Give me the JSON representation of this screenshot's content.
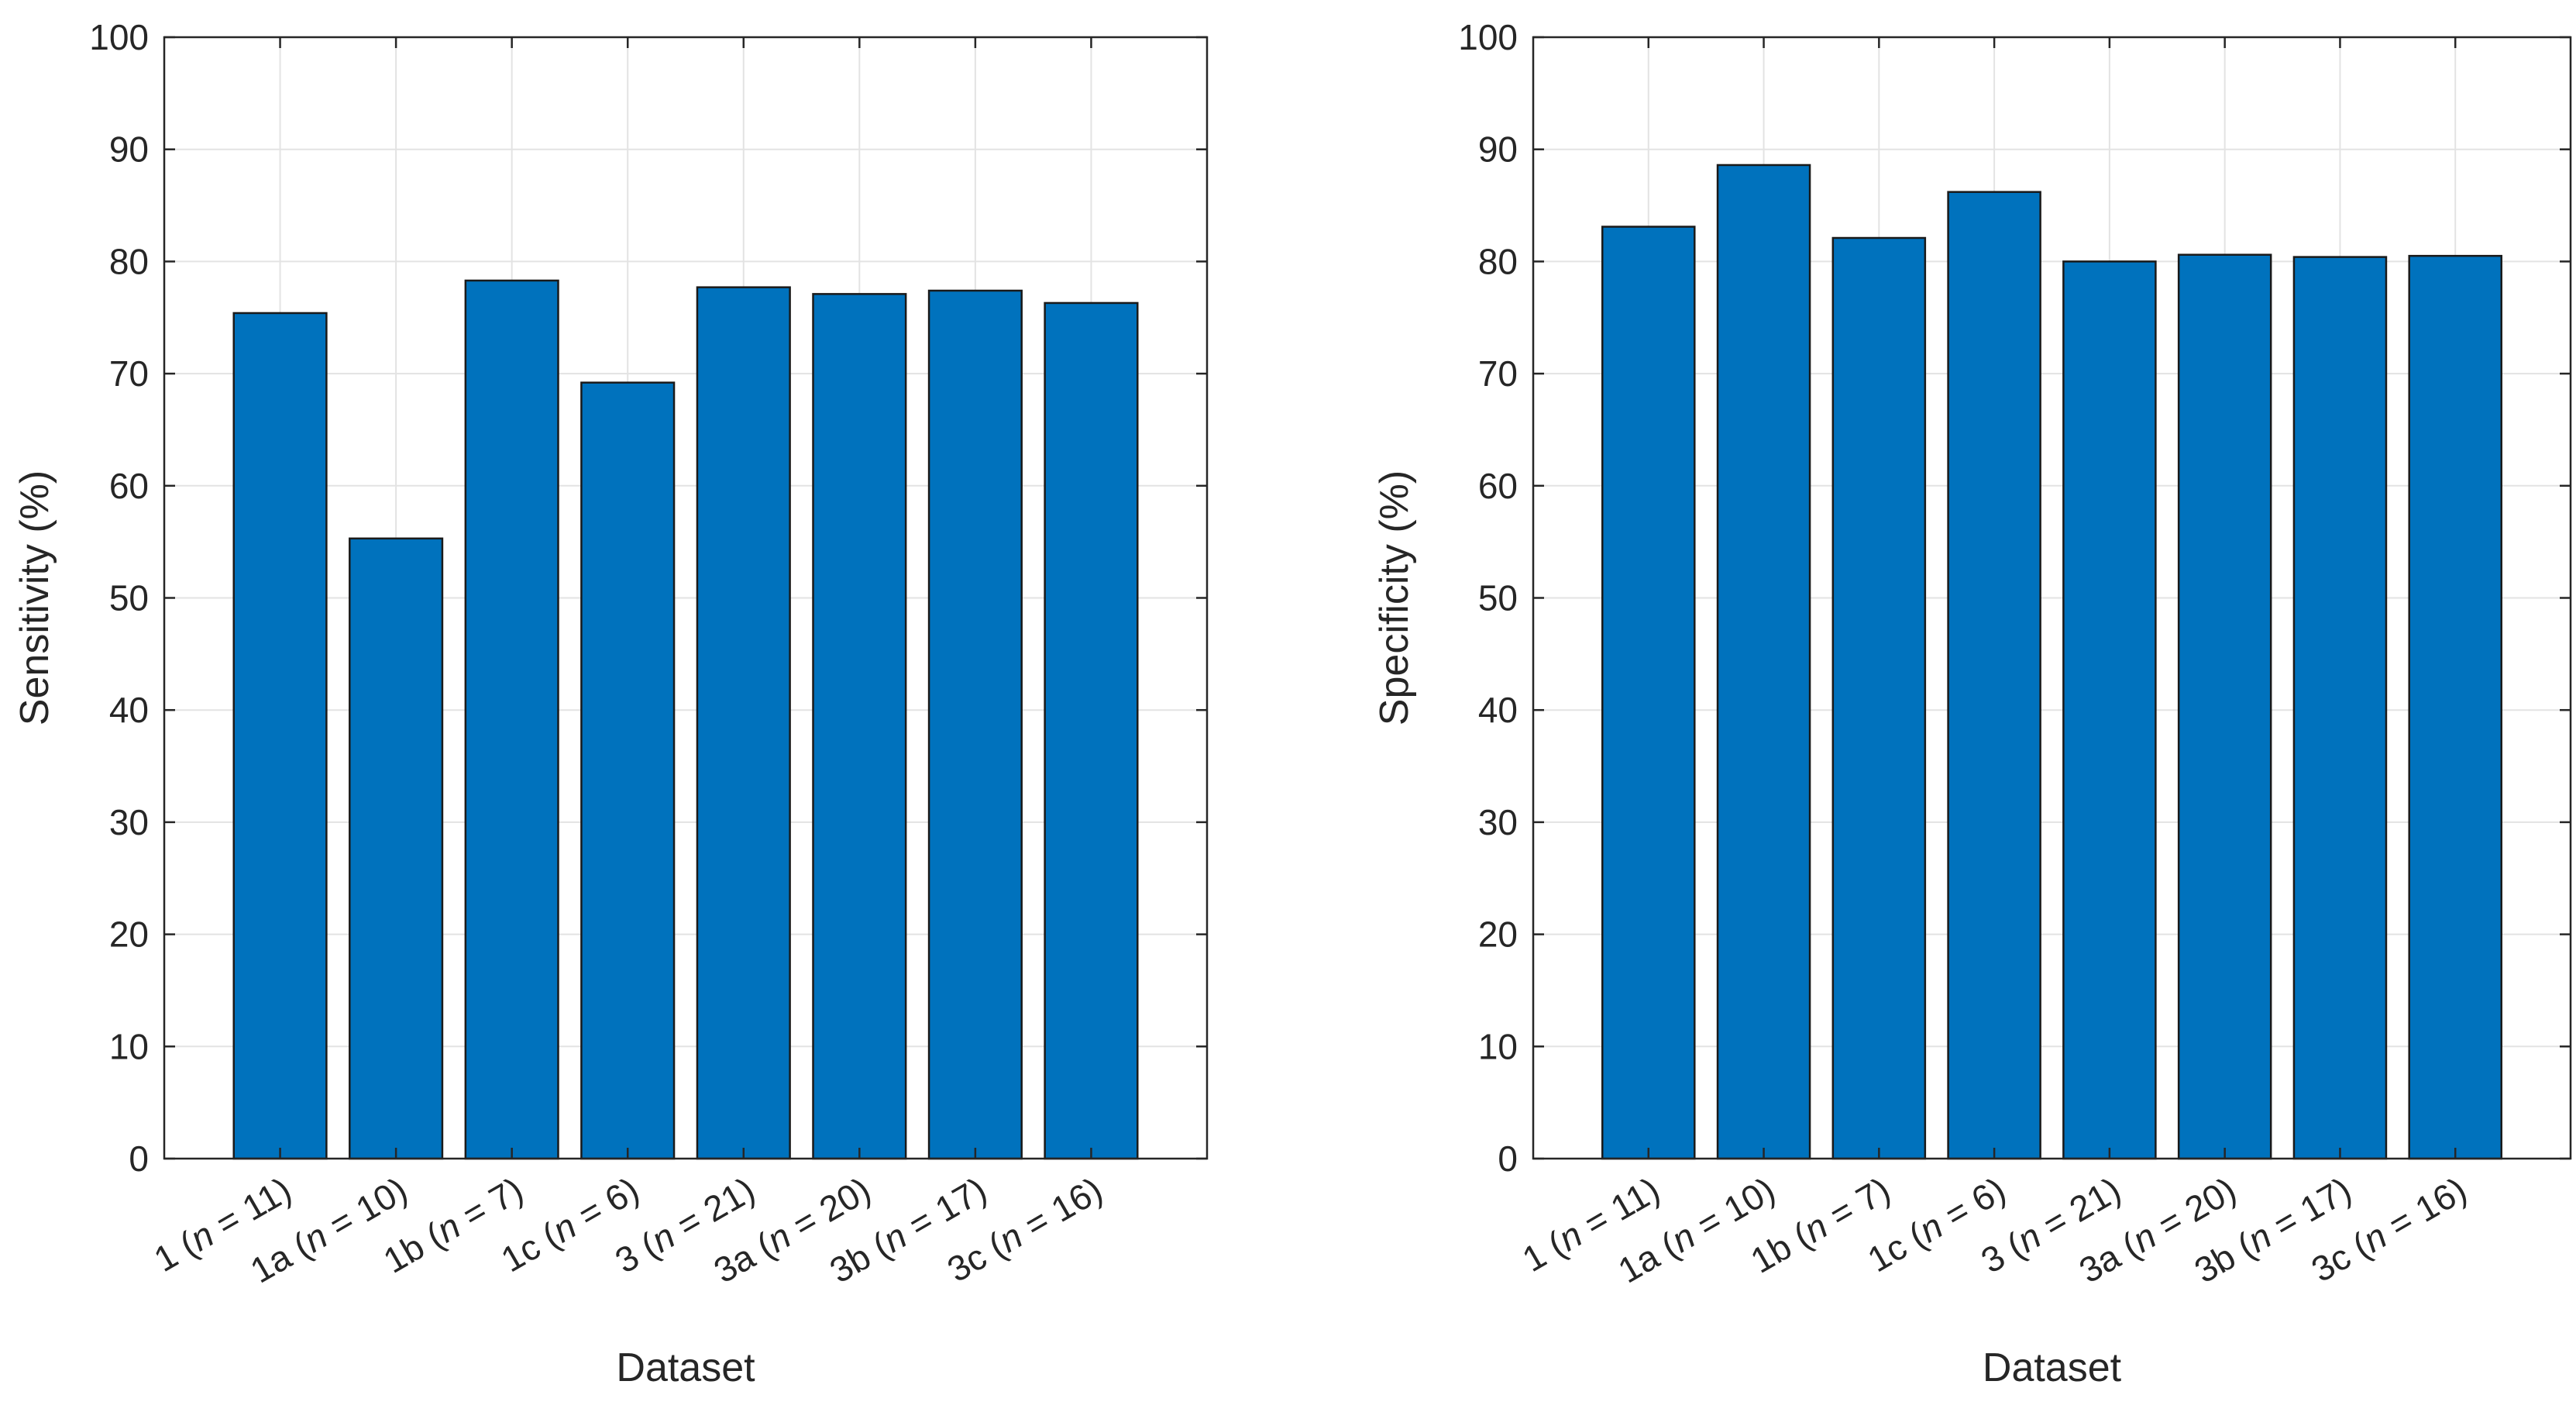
{
  "chart_data": [
    {
      "type": "bar",
      "title": "",
      "xlabel": "Dataset",
      "ylabel": "Sensitivity (%)",
      "ylim": [
        0,
        100
      ],
      "yticks": [
        "0",
        "10",
        "20",
        "30",
        "40",
        "50",
        "60",
        "70",
        "80",
        "90",
        "100"
      ],
      "grid": true,
      "bar_color": "#0072BD",
      "categories": [
        {
          "name": "1",
          "n": "11"
        },
        {
          "name": "1a",
          "n": "10"
        },
        {
          "name": "1b",
          "n": "7"
        },
        {
          "name": "1c",
          "n": "6"
        },
        {
          "name": "3",
          "n": "21"
        },
        {
          "name": "3a",
          "n": "20"
        },
        {
          "name": "3b",
          "n": "17"
        },
        {
          "name": "3c",
          "n": "16"
        }
      ],
      "values": [
        75.4,
        55.3,
        78.3,
        69.2,
        77.7,
        77.1,
        77.4,
        76.3
      ]
    },
    {
      "type": "bar",
      "title": "",
      "xlabel": "Dataset",
      "ylabel": "Specificity (%)",
      "ylim": [
        0,
        100
      ],
      "yticks": [
        "0",
        "10",
        "20",
        "30",
        "40",
        "50",
        "60",
        "70",
        "80",
        "90",
        "100"
      ],
      "grid": true,
      "bar_color": "#0072BD",
      "categories": [
        {
          "name": "1",
          "n": "11"
        },
        {
          "name": "1a",
          "n": "10"
        },
        {
          "name": "1b",
          "n": "7"
        },
        {
          "name": "1c",
          "n": "6"
        },
        {
          "name": "3",
          "n": "21"
        },
        {
          "name": "3a",
          "n": "20"
        },
        {
          "name": "3b",
          "n": "17"
        },
        {
          "name": "3c",
          "n": "16"
        }
      ],
      "values": [
        83.1,
        88.6,
        82.1,
        86.2,
        80.0,
        80.6,
        80.4,
        80.5
      ]
    }
  ]
}
